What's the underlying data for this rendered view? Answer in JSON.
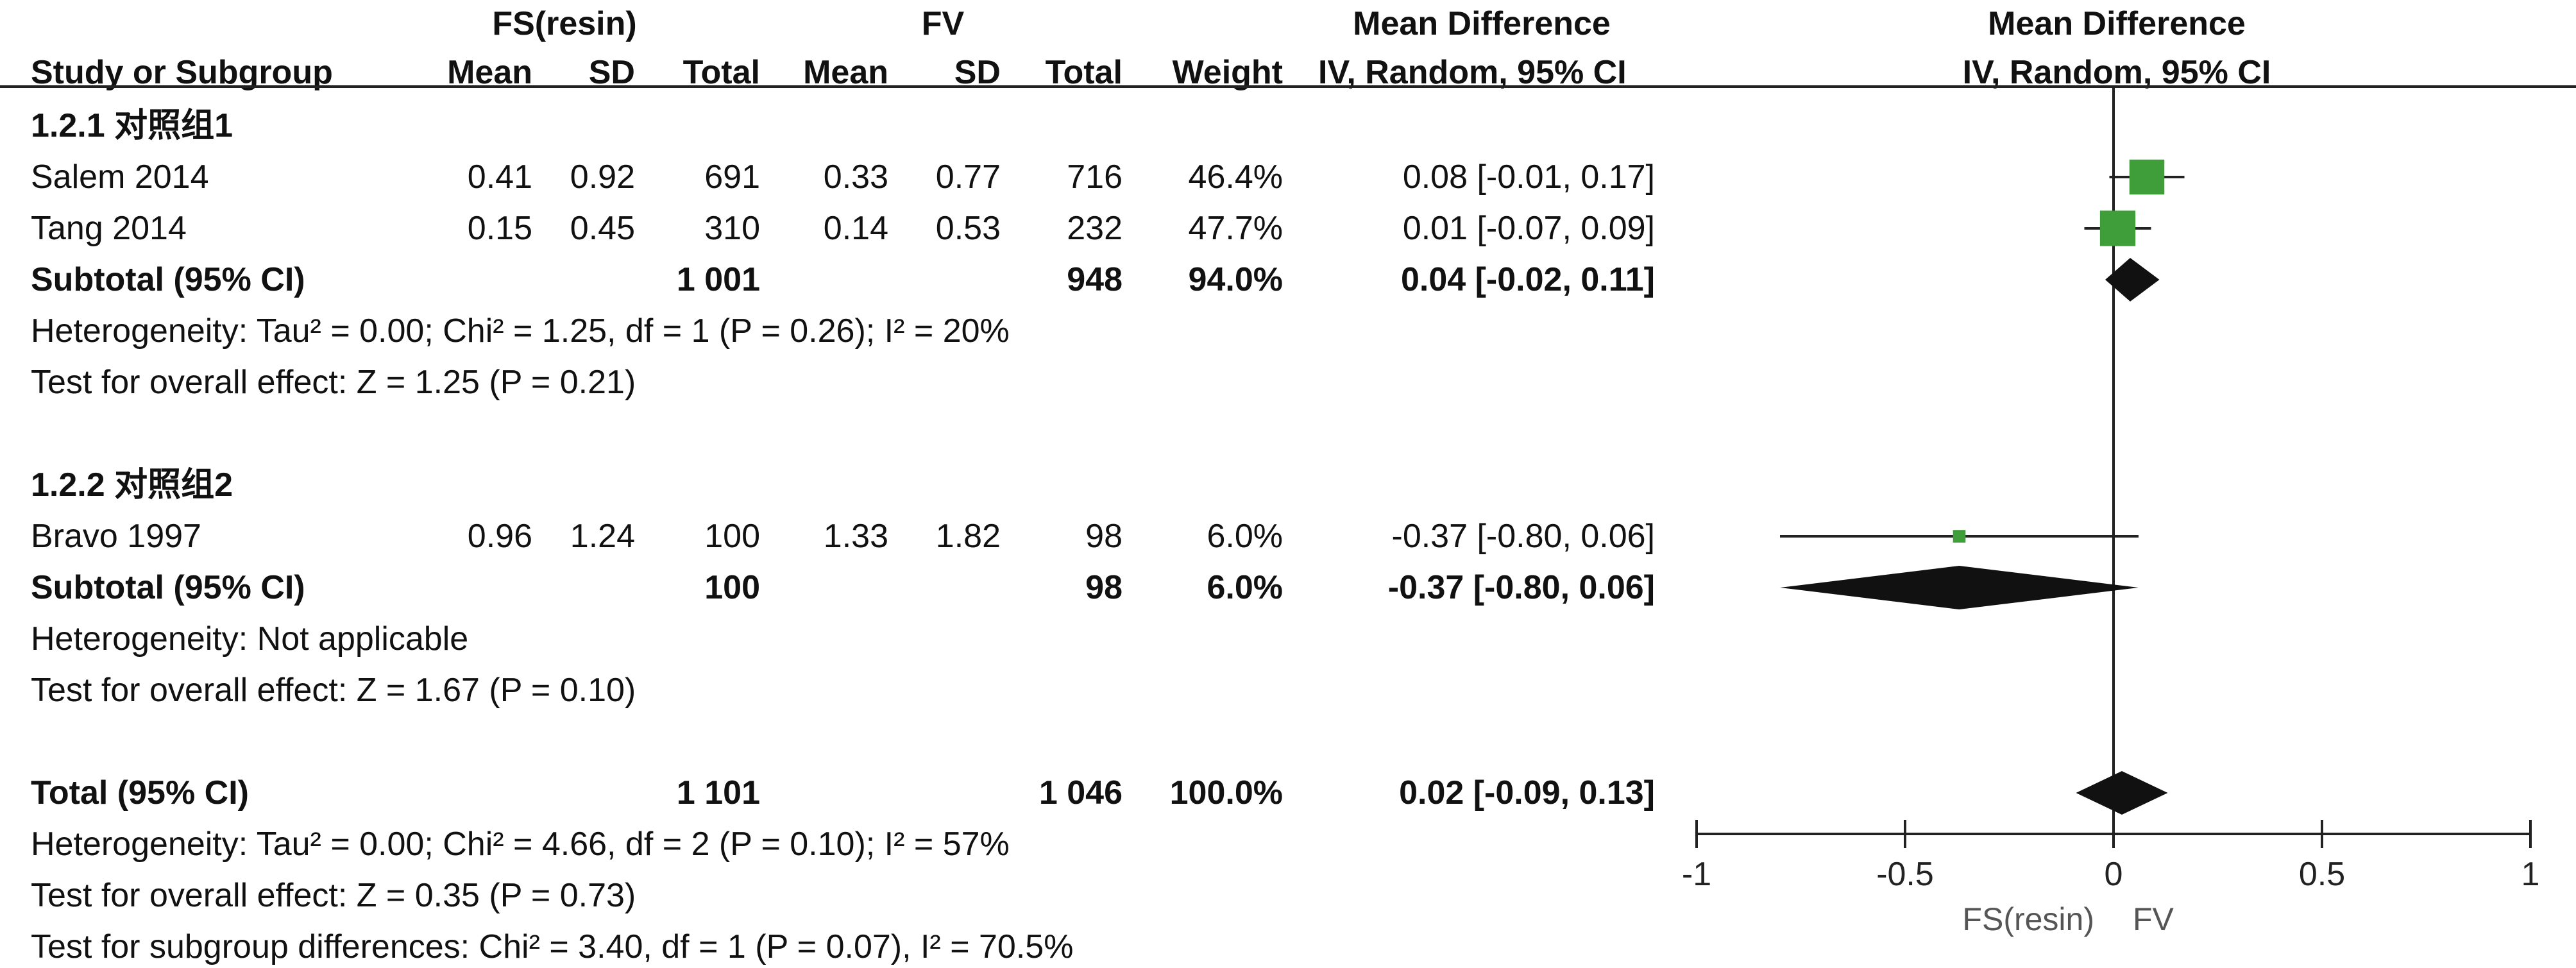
{
  "header": {
    "group1": "FS(resin)",
    "group2": "FV",
    "effect_col": "Mean Difference",
    "effect_method": "IV, Random, 95% CI",
    "plot_title": "Mean Difference",
    "plot_method": "IV, Random, 95% CI",
    "cols": {
      "study": "Study or Subgroup",
      "mean1": "Mean",
      "sd1": "SD",
      "total1": "Total",
      "mean2": "Mean",
      "sd2": "SD",
      "total2": "Total",
      "weight": "Weight"
    }
  },
  "rows": [
    {
      "kind": "group",
      "label": "1.2.1 对照组1"
    },
    {
      "kind": "study",
      "label": "Salem 2014",
      "mean1": "0.41",
      "sd1": "0.92",
      "total1": "691",
      "mean2": "0.33",
      "sd2": "0.77",
      "total2": "716",
      "weight": "46.4%",
      "ci": "0.08 [-0.01, 0.17]"
    },
    {
      "kind": "study",
      "label": "Tang 2014",
      "mean1": "0.15",
      "sd1": "0.45",
      "total1": "310",
      "mean2": "0.14",
      "sd2": "0.53",
      "total2": "232",
      "weight": "47.7%",
      "ci": "0.01 [-0.07, 0.09]"
    },
    {
      "kind": "subtotal",
      "label": "Subtotal (95% CI)",
      "total1": "1 001",
      "total2": "948",
      "weight": "94.0%",
      "ci": "0.04 [-0.02, 0.11]"
    },
    {
      "kind": "note",
      "label": "Heterogeneity: Tau² = 0.00; Chi² = 1.25, df = 1 (P = 0.26); I² = 20%"
    },
    {
      "kind": "note",
      "label": "Test for overall effect: Z = 1.25 (P = 0.21)"
    },
    {
      "kind": "blank",
      "label": ""
    },
    {
      "kind": "group",
      "label": "1.2.2 对照组2"
    },
    {
      "kind": "study",
      "label": "Bravo 1997",
      "mean1": "0.96",
      "sd1": "1.24",
      "total1": "100",
      "mean2": "1.33",
      "sd2": "1.82",
      "total2": "98",
      "weight": "6.0%",
      "ci": "-0.37 [-0.80, 0.06]"
    },
    {
      "kind": "subtotal",
      "label": "Subtotal (95% CI)",
      "total1": "100",
      "total2": "98",
      "weight": "6.0%",
      "ci": "-0.37 [-0.80, 0.06]"
    },
    {
      "kind": "note",
      "label": "Heterogeneity: Not applicable"
    },
    {
      "kind": "note",
      "label": "Test for overall effect: Z = 1.67 (P = 0.10)"
    },
    {
      "kind": "blank",
      "label": ""
    },
    {
      "kind": "total",
      "label": "Total (95% CI)",
      "total1": "1 101",
      "total2": "1 046",
      "weight": "100.0%",
      "ci": "0.02 [-0.09, 0.13]"
    },
    {
      "kind": "note",
      "label": "Heterogeneity: Tau² = 0.00; Chi² = 4.66, df = 2 (P = 0.10); I² = 57%"
    },
    {
      "kind": "note",
      "label": "Test for overall effect: Z = 0.35 (P = 0.73)"
    },
    {
      "kind": "note",
      "label": "Test for subgroup differences: Chi² = 3.40, df = 1 (P = 0.07), I² = 70.5%"
    }
  ],
  "colors": {
    "study_marker": "#3f9e3a",
    "summary_diamond": "#111111",
    "axis": "#222222"
  },
  "chart_data": {
    "type": "forest",
    "xlim": [
      -1,
      1
    ],
    "xticks": [
      -1,
      -0.5,
      0,
      0.5,
      1
    ],
    "xtick_labels": [
      "-1",
      "-0.5",
      "0",
      "0.5",
      "1"
    ],
    "xlabel_left": "FS(resin)",
    "xlabel_right": "FV",
    "null_value": 0,
    "estimates": [
      {
        "label": "Salem 2014",
        "kind": "study",
        "md": 0.08,
        "lo": -0.01,
        "hi": 0.17,
        "weight": 46.4
      },
      {
        "label": "Tang 2014",
        "kind": "study",
        "md": 0.01,
        "lo": -0.07,
        "hi": 0.09,
        "weight": 47.7
      },
      {
        "label": "Subtotal (95% CI)",
        "kind": "subtotal",
        "md": 0.04,
        "lo": -0.02,
        "hi": 0.11
      },
      {
        "label": "Bravo 1997",
        "kind": "study",
        "md": -0.37,
        "lo": -0.8,
        "hi": 0.06,
        "weight": 6.0
      },
      {
        "label": "Subtotal (95% CI)",
        "kind": "subtotal",
        "md": -0.37,
        "lo": -0.8,
        "hi": 0.06
      },
      {
        "label": "Total (95% CI)",
        "kind": "total",
        "md": 0.02,
        "lo": -0.09,
        "hi": 0.13
      }
    ]
  }
}
